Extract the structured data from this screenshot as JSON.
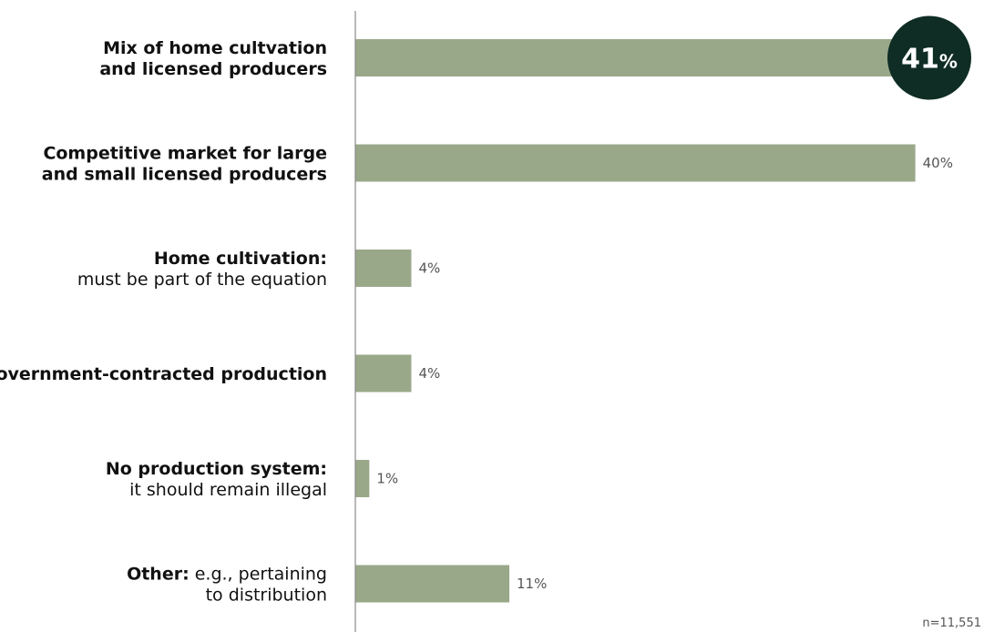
{
  "chart_data": {
    "type": "bar",
    "orientation": "horizontal",
    "categories": [
      {
        "lines": [
          {
            "bold": "Mix of home cultvation",
            "normal": ""
          },
          {
            "bold": "and licensed producers",
            "normal": ""
          }
        ]
      },
      {
        "lines": [
          {
            "bold": "Competitive market for large",
            "normal": ""
          },
          {
            "bold": "and small licensed producers",
            "normal": ""
          }
        ]
      },
      {
        "lines": [
          {
            "bold": "Home cultivation:",
            "normal": ""
          },
          {
            "bold": "",
            "normal": "must be part of the equation"
          }
        ]
      },
      {
        "lines": [
          {
            "bold": "Government-contracted production",
            "normal": ""
          }
        ]
      },
      {
        "lines": [
          {
            "bold": "No production system:",
            "normal": ""
          },
          {
            "bold": "",
            "normal": "it should remain illegal"
          }
        ]
      },
      {
        "lines": [
          {
            "bold": "Other:",
            "normal": " e.g., pertaining"
          },
          {
            "bold": "",
            "normal": "to distribution"
          }
        ]
      }
    ],
    "values": [
      41,
      40,
      4,
      4,
      1,
      11
    ],
    "value_labels": [
      "41%",
      "40%",
      "4%",
      "4%",
      "1%",
      "11%"
    ],
    "highlight": {
      "index": 0,
      "number": "41",
      "suffix": "%"
    },
    "xlim": [
      0,
      41
    ],
    "colors": {
      "bar": "#9aa88a",
      "badge": "#0f2d24"
    },
    "footnote": "n=11,551"
  }
}
